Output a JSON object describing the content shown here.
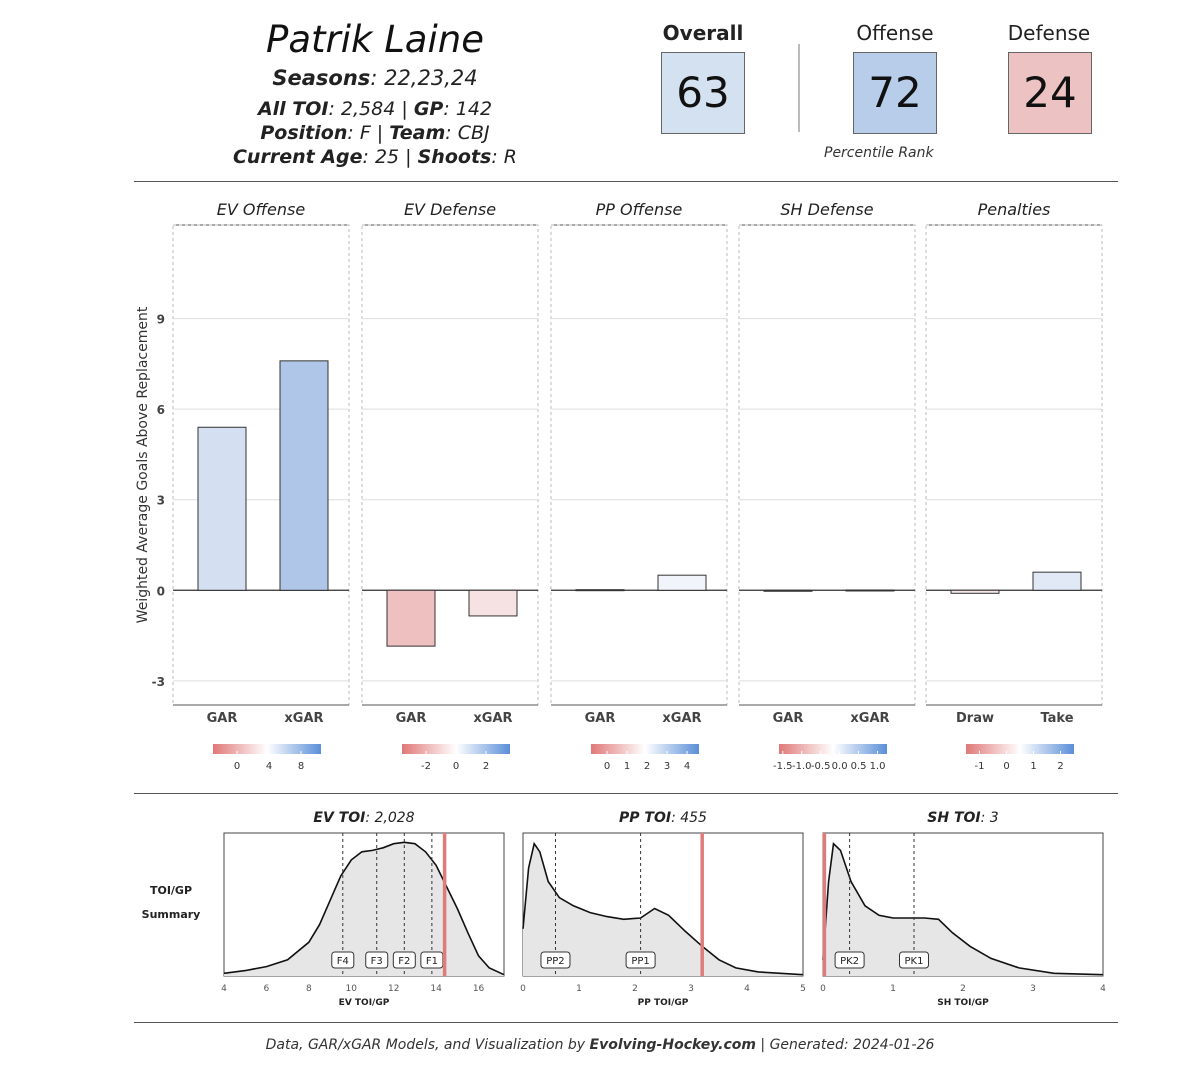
{
  "player": {
    "name": "Patrik Laine",
    "seasons_label": "Seasons",
    "seasons": "22,23,24",
    "toi_label": "All TOI",
    "toi": "2,584",
    "gp_label": "GP",
    "gp": "142",
    "position_label": "Position",
    "position": "F",
    "team_label": "Team",
    "team": "CBJ",
    "age_label": "Current Age",
    "age": "25",
    "shoots_label": "Shoots",
    "shoots": "R"
  },
  "ranks": {
    "overall_label": "Overall",
    "overall": "63",
    "overall_color": "#d4e1f0",
    "offense_label": "Offense",
    "offense": "72",
    "offense_color": "#b7cde9",
    "defense_label": "Defense",
    "defense": "24",
    "defense_color": "#ecc2c3",
    "note": "Percentile Rank"
  },
  "chart_data": [
    {
      "type": "bar",
      "ylabel": "Weighted Average Goals Above Replacement",
      "ylim": [
        -3.8,
        12.1
      ],
      "yticks": [
        -3,
        0,
        3,
        6,
        9
      ],
      "grid": true,
      "panels": [
        {
          "title": "EV Offense",
          "categories": [
            "GAR",
            "xGAR"
          ],
          "values": [
            5.4,
            7.6
          ],
          "colors": [
            "#d4dff2",
            "#b0c6e8"
          ],
          "legend": {
            "ticks": [
              "0",
              "4",
              "8"
            ],
            "min": -3,
            "max": 10.5,
            "tick_values": [
              0,
              4,
              8
            ]
          }
        },
        {
          "title": "EV Defense",
          "categories": [
            "GAR",
            "xGAR"
          ],
          "values": [
            -1.85,
            -0.85
          ],
          "colors": [
            "#efc0c0",
            "#f6e2e2"
          ],
          "legend": {
            "ticks": [
              "-2",
              "0",
              "2"
            ],
            "min": -3.6,
            "max": 3.6,
            "tick_values": [
              -2,
              0,
              2
            ]
          }
        },
        {
          "title": "PP Offense",
          "categories": [
            "GAR",
            "xGAR"
          ],
          "values": [
            0.02,
            0.5
          ],
          "colors": [
            "#ffffff",
            "#f1f4fb"
          ],
          "legend": {
            "ticks": [
              "0",
              "1",
              "2",
              "3",
              "4"
            ],
            "min": -0.8,
            "max": 4.6,
            "tick_values": [
              0,
              1,
              2,
              3,
              4
            ]
          }
        },
        {
          "title": "SH Defense",
          "categories": [
            "GAR",
            "xGAR"
          ],
          "values": [
            0.0,
            0.01
          ],
          "colors": [
            "#ffffff",
            "#ffffff"
          ],
          "legend": {
            "ticks": [
              "-1.5",
              "-1.0",
              "-0.5",
              "0.0",
              "0.5",
              "1.0"
            ],
            "min": -1.6,
            "max": 1.25,
            "tick_values": [
              -1.5,
              -1.0,
              -0.5,
              0.0,
              0.5,
              1.0
            ]
          }
        },
        {
          "title": "Penalties",
          "categories": [
            "Draw",
            "Take"
          ],
          "values": [
            -0.1,
            0.6
          ],
          "colors": [
            "#f6e6e6",
            "#e1e9f6"
          ],
          "legend": {
            "ticks": [
              "-1",
              "0",
              "1",
              "2"
            ],
            "min": -1.5,
            "max": 2.5,
            "tick_values": [
              -1,
              0,
              1,
              2
            ]
          }
        }
      ]
    },
    {
      "type": "area",
      "row_label_1": "TOI/GP",
      "row_label_2": "Summary",
      "panels": [
        {
          "title_label": "EV TOI",
          "title_value": "2,028",
          "xlabel": "EV TOI/GP",
          "xlim": [
            4,
            17.2
          ],
          "xticks": [
            4,
            6,
            8,
            10,
            12,
            14,
            16
          ],
          "player_value": 14.4,
          "density": [
            [
              4,
              0.02
            ],
            [
              5,
              0.04
            ],
            [
              6,
              0.07
            ],
            [
              7,
              0.12
            ],
            [
              8,
              0.25
            ],
            [
              8.5,
              0.38
            ],
            [
              9,
              0.56
            ],
            [
              9.5,
              0.74
            ],
            [
              10,
              0.86
            ],
            [
              10.5,
              0.92
            ],
            [
              11,
              0.93
            ],
            [
              11.5,
              0.95
            ],
            [
              12,
              0.98
            ],
            [
              12.5,
              0.99
            ],
            [
              13,
              0.98
            ],
            [
              13.5,
              0.92
            ],
            [
              14,
              0.82
            ],
            [
              14.5,
              0.66
            ],
            [
              15,
              0.5
            ],
            [
              15.5,
              0.32
            ],
            [
              16,
              0.15
            ],
            [
              16.5,
              0.06
            ],
            [
              17.2,
              0.01
            ]
          ],
          "markers": [
            {
              "label": "F4",
              "x": 9.6
            },
            {
              "label": "F3",
              "x": 11.2
            },
            {
              "label": "F2",
              "x": 12.5
            },
            {
              "label": "F1",
              "x": 13.8
            }
          ]
        },
        {
          "title_label": "PP TOI",
          "title_value": "455",
          "xlabel": "PP TOI/GP",
          "xlim": [
            0,
            5
          ],
          "xticks": [
            0,
            1,
            2,
            3,
            4,
            5
          ],
          "player_value": 3.2,
          "density": [
            [
              0,
              0.35
            ],
            [
              0.1,
              0.8
            ],
            [
              0.2,
              0.98
            ],
            [
              0.3,
              0.92
            ],
            [
              0.45,
              0.7
            ],
            [
              0.65,
              0.58
            ],
            [
              0.9,
              0.52
            ],
            [
              1.2,
              0.47
            ],
            [
              1.5,
              0.44
            ],
            [
              1.8,
              0.42
            ],
            [
              2.1,
              0.43
            ],
            [
              2.35,
              0.5
            ],
            [
              2.6,
              0.45
            ],
            [
              2.9,
              0.33
            ],
            [
              3.2,
              0.22
            ],
            [
              3.5,
              0.12
            ],
            [
              3.8,
              0.06
            ],
            [
              4.2,
              0.03
            ],
            [
              5,
              0.01
            ]
          ],
          "markers": [
            {
              "label": "PP2",
              "x": 0.58
            },
            {
              "label": "PP1",
              "x": 2.1
            }
          ]
        },
        {
          "title_label": "SH TOI",
          "title_value": "3",
          "xlabel": "SH TOI/GP",
          "xlim": [
            0,
            4
          ],
          "xticks": [
            0,
            1,
            2,
            3,
            4
          ],
          "player_value": 0.02,
          "density": [
            [
              0,
              0.12
            ],
            [
              0.08,
              0.7
            ],
            [
              0.15,
              0.98
            ],
            [
              0.25,
              0.93
            ],
            [
              0.4,
              0.7
            ],
            [
              0.6,
              0.52
            ],
            [
              0.8,
              0.45
            ],
            [
              1.0,
              0.43
            ],
            [
              1.2,
              0.43
            ],
            [
              1.45,
              0.43
            ],
            [
              1.65,
              0.42
            ],
            [
              1.85,
              0.32
            ],
            [
              2.1,
              0.22
            ],
            [
              2.4,
              0.13
            ],
            [
              2.8,
              0.06
            ],
            [
              3.3,
              0.02
            ],
            [
              4,
              0.01
            ]
          ],
          "markers": [
            {
              "label": "PK2",
              "x": 0.38
            },
            {
              "label": "PK1",
              "x": 1.3
            }
          ]
        }
      ]
    }
  ],
  "footer": {
    "prefix": "Data, GAR/xGAR Models, and Visualization by ",
    "brand": "Evolving-Hockey.com",
    "suffix": " | Generated: 2024-01-26"
  }
}
